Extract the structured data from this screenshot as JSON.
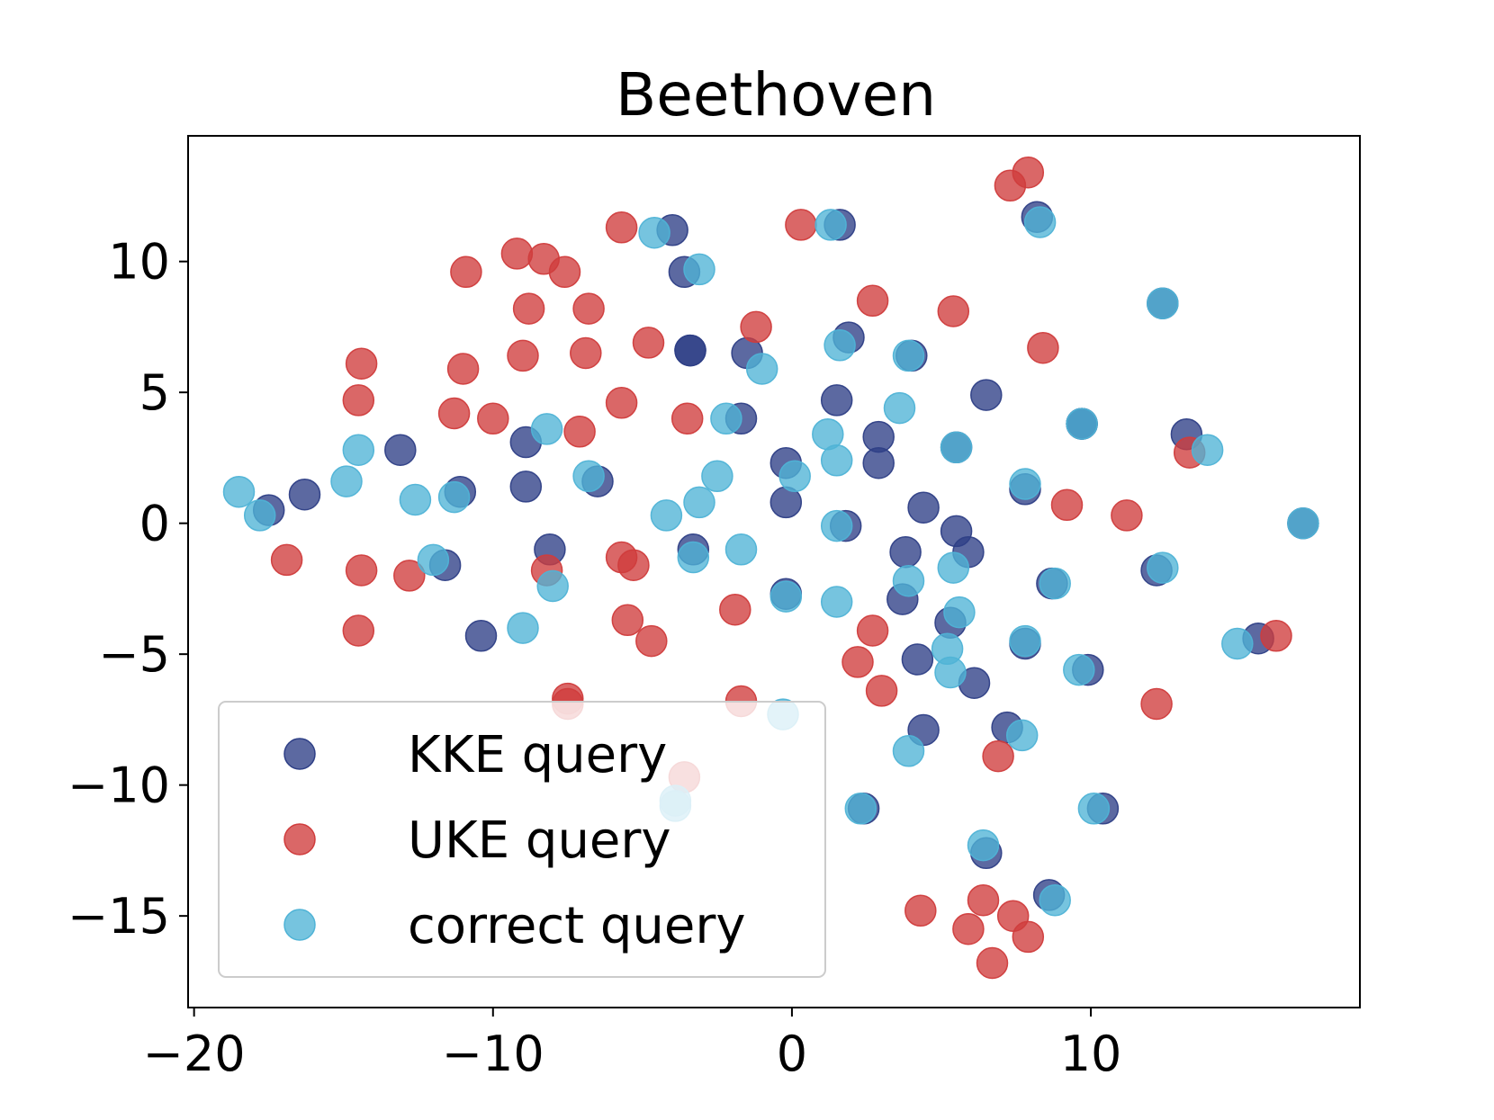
{
  "chart_data": {
    "type": "scatter",
    "title": "Beethoven",
    "xlabel": "",
    "ylabel": "",
    "xlim": [
      -20.2,
      19.0
    ],
    "ylim": [
      -18.5,
      14.8
    ],
    "xticks": [
      -20,
      -10,
      0,
      10
    ],
    "xtick_labels": [
      "−20",
      "−10",
      "0",
      "10"
    ],
    "yticks": [
      10,
      5,
      0,
      -5,
      -10,
      -15
    ],
    "ytick_labels": [
      "10",
      "5",
      "0",
      "−5",
      "−10",
      "−15"
    ],
    "grid": false,
    "legend_position": "lower-left",
    "series": [
      {
        "name": "KKE query",
        "color": "#2e3f86",
        "points": [
          [
            -4.0,
            11.2
          ],
          [
            -3.6,
            9.6
          ],
          [
            -3.4,
            6.6
          ],
          [
            -3.4,
            6.6
          ],
          [
            -1.5,
            6.5
          ],
          [
            1.9,
            7.1
          ],
          [
            4.0,
            6.4
          ],
          [
            1.5,
            4.7
          ],
          [
            6.5,
            4.9
          ],
          [
            -1.7,
            4.0
          ],
          [
            -8.9,
            3.1
          ],
          [
            -13.1,
            2.8
          ],
          [
            2.9,
            3.3
          ],
          [
            9.7,
            3.8
          ],
          [
            13.2,
            3.4
          ],
          [
            -0.2,
            2.3
          ],
          [
            2.9,
            2.3
          ],
          [
            -17.5,
            0.5
          ],
          [
            -16.3,
            1.1
          ],
          [
            -11.1,
            1.2
          ],
          [
            -8.9,
            1.4
          ],
          [
            -6.5,
            1.6
          ],
          [
            -0.2,
            0.8
          ],
          [
            4.4,
            0.6
          ],
          [
            7.8,
            1.3
          ],
          [
            -8.1,
            -1.0
          ],
          [
            -3.3,
            -1.0
          ],
          [
            1.8,
            -0.1
          ],
          [
            3.8,
            -1.1
          ],
          [
            5.5,
            -0.3
          ],
          [
            5.9,
            -1.1
          ],
          [
            -11.6,
            -1.6
          ],
          [
            12.2,
            -1.8
          ],
          [
            8.7,
            -2.3
          ],
          [
            -0.2,
            -2.7
          ],
          [
            3.7,
            -2.9
          ],
          [
            5.3,
            -3.8
          ],
          [
            -10.4,
            -4.3
          ],
          [
            7.8,
            -4.6
          ],
          [
            15.6,
            -4.4
          ],
          [
            4.2,
            -5.2
          ],
          [
            6.1,
            -6.1
          ],
          [
            9.9,
            -5.6
          ],
          [
            4.4,
            -7.9
          ],
          [
            7.2,
            -7.8
          ],
          [
            2.4,
            -10.9
          ],
          [
            10.4,
            -10.9
          ],
          [
            6.5,
            -12.6
          ],
          [
            8.6,
            -14.2
          ],
          [
            17.1,
            0.0
          ],
          [
            8.2,
            11.7
          ],
          [
            1.6,
            11.4
          ],
          [
            12.4,
            8.4
          ],
          [
            5.5,
            2.9
          ],
          [
            9.7,
            3.8
          ]
        ]
      },
      {
        "name": "UKE query",
        "color": "#d03c3c",
        "points": [
          [
            7.9,
            13.4
          ],
          [
            7.3,
            12.9
          ],
          [
            0.3,
            11.4
          ],
          [
            -5.7,
            11.3
          ],
          [
            -9.2,
            10.3
          ],
          [
            -8.3,
            10.1
          ],
          [
            -7.6,
            9.6
          ],
          [
            -10.9,
            9.6
          ],
          [
            -8.8,
            8.2
          ],
          [
            -6.8,
            8.2
          ],
          [
            2.7,
            8.5
          ],
          [
            5.4,
            8.1
          ],
          [
            -1.2,
            7.5
          ],
          [
            -4.8,
            6.9
          ],
          [
            -6.9,
            6.5
          ],
          [
            -9.0,
            6.4
          ],
          [
            8.4,
            6.7
          ],
          [
            -14.4,
            6.1
          ],
          [
            -11.0,
            5.9
          ],
          [
            -14.5,
            4.7
          ],
          [
            -5.7,
            4.6
          ],
          [
            -11.3,
            4.2
          ],
          [
            -10.0,
            4.0
          ],
          [
            -7.1,
            3.5
          ],
          [
            -3.5,
            4.0
          ],
          [
            13.3,
            2.7
          ],
          [
            9.2,
            0.7
          ],
          [
            11.2,
            0.3
          ],
          [
            -16.9,
            -1.4
          ],
          [
            -14.4,
            -1.8
          ],
          [
            -12.8,
            -2.0
          ],
          [
            -8.2,
            -1.8
          ],
          [
            -5.7,
            -1.3
          ],
          [
            -5.3,
            -1.6
          ],
          [
            -1.9,
            -3.3
          ],
          [
            -5.5,
            -3.7
          ],
          [
            -4.7,
            -4.5
          ],
          [
            2.7,
            -4.1
          ],
          [
            2.2,
            -5.3
          ],
          [
            3.0,
            -6.4
          ],
          [
            -14.5,
            -4.1
          ],
          [
            -7.5,
            -6.7
          ],
          [
            -7.5,
            -6.9
          ],
          [
            -1.7,
            -6.8
          ],
          [
            12.2,
            -6.9
          ],
          [
            16.2,
            -4.3
          ],
          [
            -3.6,
            -9.7
          ],
          [
            6.9,
            -8.9
          ],
          [
            4.3,
            -14.8
          ],
          [
            6.4,
            -14.4
          ],
          [
            7.4,
            -15.0
          ],
          [
            5.9,
            -15.5
          ],
          [
            7.9,
            -15.8
          ],
          [
            6.7,
            -16.8
          ]
        ]
      },
      {
        "name": "correct query",
        "color": "#4fb3d6",
        "points": [
          [
            -4.6,
            11.1
          ],
          [
            1.3,
            11.4
          ],
          [
            8.3,
            11.5
          ],
          [
            -3.1,
            9.7
          ],
          [
            -1.0,
            5.9
          ],
          [
            1.6,
            6.8
          ],
          [
            3.9,
            6.4
          ],
          [
            -8.2,
            3.6
          ],
          [
            -14.5,
            2.8
          ],
          [
            -2.2,
            4.0
          ],
          [
            3.6,
            4.4
          ],
          [
            1.2,
            3.4
          ],
          [
            1.5,
            2.4
          ],
          [
            13.9,
            2.8
          ],
          [
            -18.5,
            1.2
          ],
          [
            -17.8,
            0.3
          ],
          [
            -14.9,
            1.6
          ],
          [
            -12.6,
            0.9
          ],
          [
            -11.3,
            1.0
          ],
          [
            -6.8,
            1.8
          ],
          [
            -2.5,
            1.8
          ],
          [
            -3.1,
            0.8
          ],
          [
            -4.2,
            0.3
          ],
          [
            0.1,
            1.8
          ],
          [
            7.8,
            1.5
          ],
          [
            -12.0,
            -1.4
          ],
          [
            -3.3,
            -1.3
          ],
          [
            -1.7,
            -1.0
          ],
          [
            1.5,
            -0.1
          ],
          [
            5.4,
            -1.7
          ],
          [
            12.4,
            -1.7
          ],
          [
            3.9,
            -2.2
          ],
          [
            8.8,
            -2.3
          ],
          [
            -8.0,
            -2.4
          ],
          [
            -0.2,
            -2.8
          ],
          [
            1.5,
            -3.0
          ],
          [
            5.6,
            -3.4
          ],
          [
            -9.0,
            -4.0
          ],
          [
            5.2,
            -4.8
          ],
          [
            7.8,
            -4.5
          ],
          [
            14.9,
            -4.6
          ],
          [
            5.3,
            -5.7
          ],
          [
            9.6,
            -5.6
          ],
          [
            -0.3,
            -7.3
          ],
          [
            7.7,
            -8.1
          ],
          [
            3.9,
            -8.7
          ],
          [
            -3.9,
            -10.6
          ],
          [
            -3.9,
            -10.8
          ],
          [
            10.1,
            -10.9
          ],
          [
            2.3,
            -10.9
          ],
          [
            6.4,
            -12.3
          ],
          [
            8.8,
            -14.4
          ],
          [
            17.1,
            0.0
          ],
          [
            12.4,
            8.4
          ],
          [
            5.5,
            2.9
          ],
          [
            9.7,
            3.8
          ]
        ]
      }
    ]
  }
}
